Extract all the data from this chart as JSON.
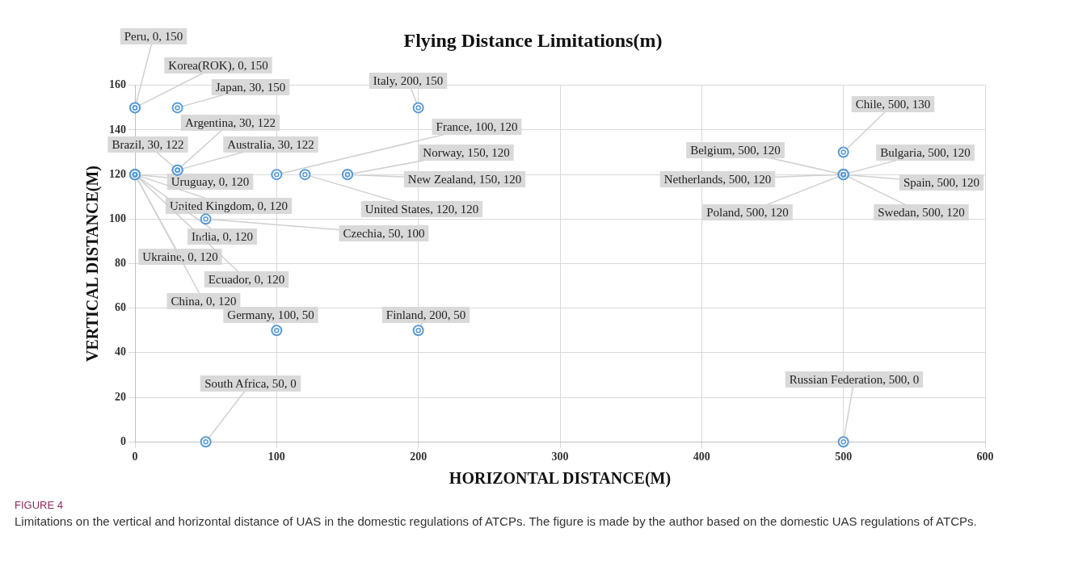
{
  "chart_data": {
    "type": "scatter",
    "title": "Flying Distance Limitations(m)",
    "xlabel": "HORIZONTAL DISTANCE(M)",
    "ylabel": "VERTICAL DISTANCE(M)",
    "xlim": [
      0,
      600
    ],
    "xticks": [
      0,
      100,
      200,
      300,
      400,
      500,
      600
    ],
    "ylim": [
      0,
      160
    ],
    "yticks": [
      0,
      20,
      40,
      60,
      80,
      100,
      120,
      140,
      160
    ],
    "grid": true,
    "legend": false,
    "marker": "circle",
    "series": [
      {
        "color": "#5b9bd5",
        "x": [
          0,
          0,
          30,
          200,
          500,
          30,
          30,
          30,
          100,
          150,
          150,
          120,
          0,
          0,
          0,
          0,
          0,
          0,
          50,
          100,
          200,
          50,
          500,
          500,
          500,
          500,
          500,
          500,
          500
        ],
        "values": [
          150,
          150,
          150,
          150,
          130,
          122,
          122,
          122,
          120,
          120,
          120,
          120,
          120,
          120,
          120,
          120,
          120,
          120,
          100,
          50,
          50,
          0,
          0,
          120,
          120,
          120,
          120,
          120,
          120
        ],
        "value_labels": [
          "Peru, 0, 150",
          "Korea(ROK), 0, 150",
          "Japan, 30, 150",
          "Italy, 200, 150",
          "Chile, 500, 130",
          "Argentina, 30, 122",
          "Brazil, 30, 122",
          "Australia, 30, 122",
          "France, 100, 120",
          "Norway, 150, 120",
          "New Zealand, 150, 120",
          "United States, 120, 120",
          "Uruguay, 0, 120",
          "United Kingdom, 0, 120",
          "India, 0, 120",
          "Ukraine, 0, 120",
          "Ecuador, 0, 120",
          "China, 0, 120",
          "Czechia, 50, 100",
          "Germany, 100, 50",
          "Finland, 200, 50",
          "South Africa, 50, 0",
          "Russian Federation, 500, 0",
          "Belgium, 500, 120",
          "Bulgaria, 500, 120",
          "Netherlands, 500, 120",
          "Spain, 500, 120",
          "Poland, 500, 120",
          "Swedan, 500, 120"
        ]
      }
    ],
    "annotations": [
      "FIGURE 4",
      "Limitations on the vertical and horizontal distance of UAS in the domestic regulations of ATCPs. The figure is made by the author based on the domestic UAS regulations of ATCPs."
    ]
  }
}
